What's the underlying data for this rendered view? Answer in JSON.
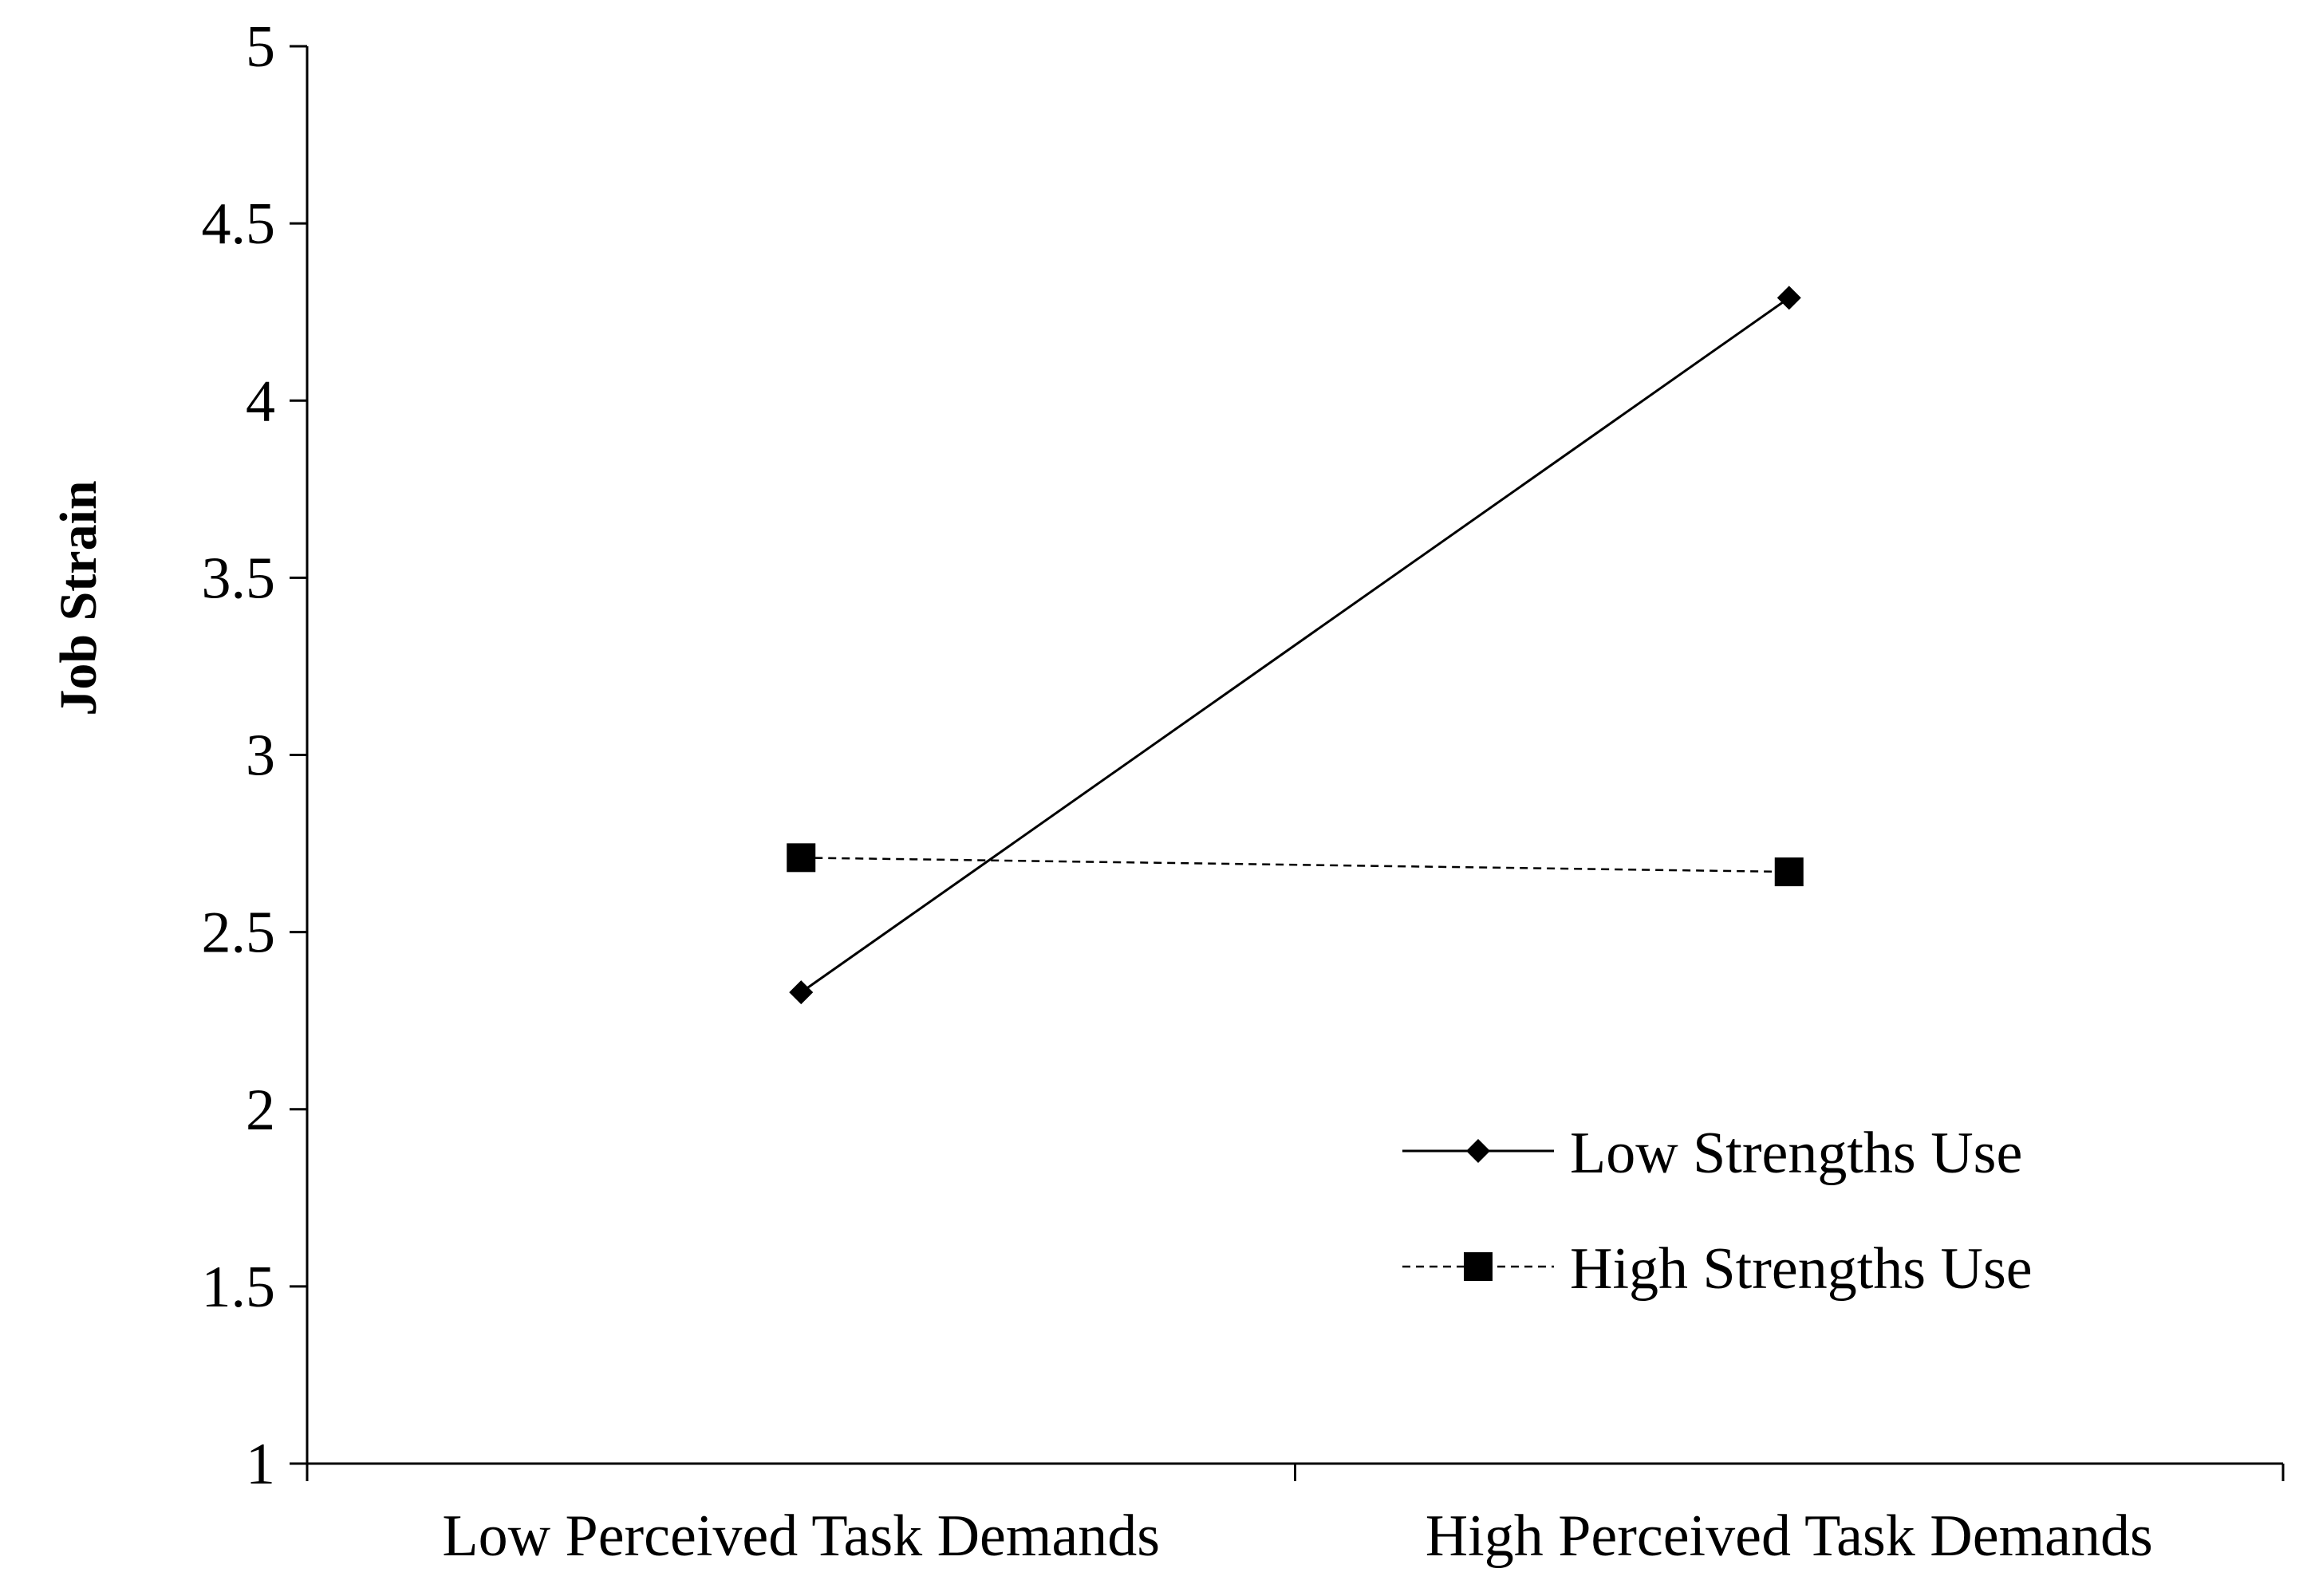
{
  "chart_data": {
    "type": "line",
    "title": "",
    "xlabel": "",
    "ylabel": "Job Strain",
    "categories": [
      "Low Perceived Task Demands",
      "High Perceived Task Demands"
    ],
    "ylim": [
      1,
      5
    ],
    "yticks": [
      "1",
      "1.5",
      "2",
      "2.5",
      "3",
      "3.5",
      "4",
      "4.5",
      "5"
    ],
    "grid": false,
    "legend_position": "bottom-right",
    "series": [
      {
        "name": "Low Strengths Use",
        "values": [
          2.33,
          4.29
        ],
        "marker": "diamond",
        "line": "solid",
        "color": "#000000"
      },
      {
        "name": "High Strengths Use",
        "values": [
          2.71,
          2.67
        ],
        "marker": "square",
        "line": "dashed",
        "color": "#000000"
      }
    ]
  }
}
